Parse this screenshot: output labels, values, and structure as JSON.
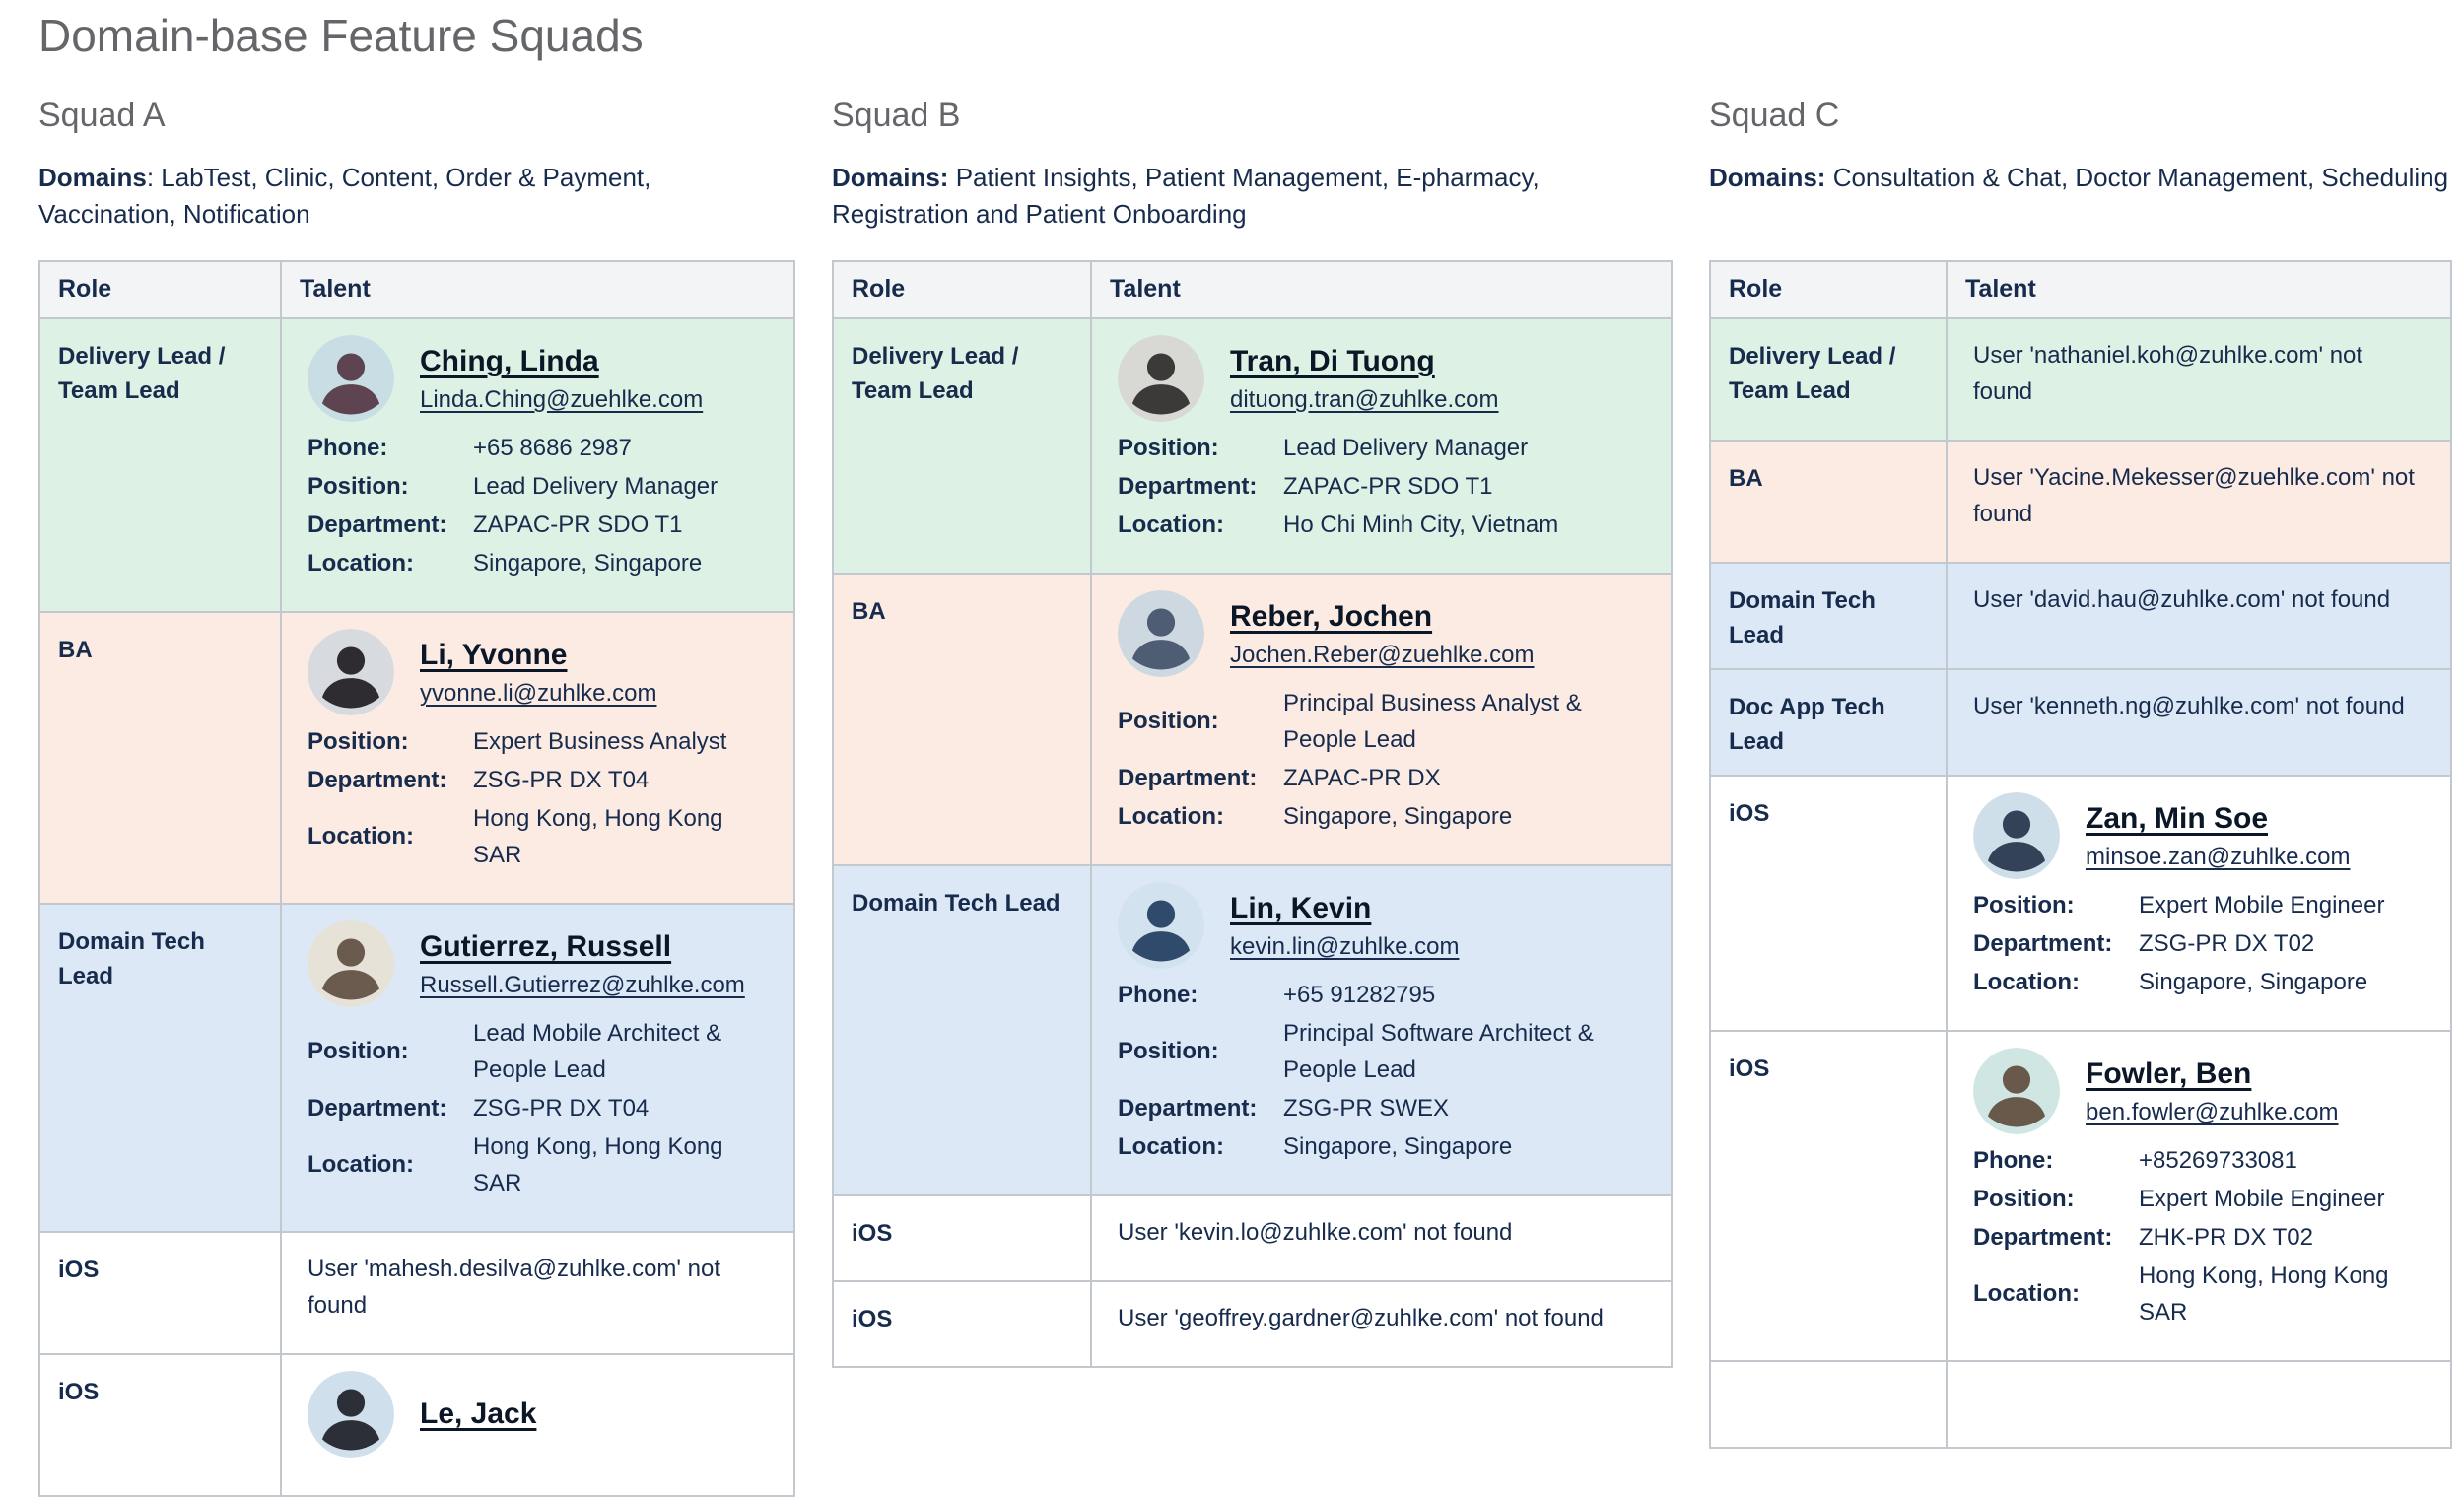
{
  "page": {
    "title": "Domain-base Feature Squads"
  },
  "labels": {
    "role_header": "Role",
    "talent_header": "Talent"
  },
  "theme": {
    "text": "#172b4d",
    "heading_gray": "#646669",
    "link_dark": "#0b1627",
    "row_green": "#def1e5",
    "row_pink": "#fcebe3",
    "row_blue": "#dde8f7",
    "header_bg": "#f3f4f6",
    "border": "#c3c8cf"
  },
  "squads": [
    {
      "name": "Squad A",
      "domains_bold": "Domains",
      "domains_rest": ": LabTest, Clinic, Content, Order & Payment, Vaccination, Notification",
      "rows": [
        {
          "type": "person",
          "color": "green",
          "role": "Delivery Lead / Team Lead",
          "person": {
            "name": "Ching, Linda",
            "email": "Linda.Ching@zuehlke.com",
            "avatar": {
              "bg": "#c9dde4",
              "fg": "#5d4450"
            },
            "fields": [
              {
                "label": "Phone:",
                "value": "+65 8686 2987"
              },
              {
                "label": "Position:",
                "value": "Lead Delivery Manager"
              },
              {
                "label": "Department:",
                "value": "ZAPAC-PR SDO T1"
              },
              {
                "label": "Location:",
                "value": "Singapore, Singapore"
              }
            ]
          }
        },
        {
          "type": "person",
          "color": "pink",
          "role": "BA",
          "person": {
            "name": "Li, Yvonne",
            "email": "yvonne.li@zuhlke.com",
            "avatar": {
              "bg": "#d7dbdf",
              "fg": "#2e2b31"
            },
            "fields": [
              {
                "label": "Position:",
                "value": "Expert Business Analyst"
              },
              {
                "label": "Department:",
                "value": "ZSG-PR DX T04"
              },
              {
                "label": "Location:",
                "value": "Hong Kong, Hong Kong SAR"
              }
            ]
          }
        },
        {
          "type": "person",
          "color": "blue",
          "role": "Domain Tech Lead",
          "person": {
            "name": "Gutierrez, Russell",
            "email": "Russell.Gutierrez@zuhlke.com",
            "avatar": {
              "bg": "#e7e2d8",
              "fg": "#6b5b4e"
            },
            "fields": [
              {
                "label": "Position:",
                "value": "Lead Mobile Architect & People Lead"
              },
              {
                "label": "Department:",
                "value": "ZSG-PR DX T04"
              },
              {
                "label": "Location:",
                "value": "Hong Kong, Hong Kong SAR"
              }
            ]
          }
        },
        {
          "type": "text",
          "color": "white",
          "role": "iOS",
          "text": "User 'mahesh.desilva@zuhlke.com' not found"
        },
        {
          "type": "person",
          "color": "white",
          "role": "iOS",
          "person": {
            "name": "Le, Jack",
            "email": null,
            "avatar": {
              "bg": "#cfe0ec",
              "fg": "#2c2f38"
            },
            "fields": []
          }
        }
      ]
    },
    {
      "name": "Squad B",
      "domains_bold": "Domains:",
      "domains_rest": " Patient Insights, Patient Management, E-pharmacy, Registration and Patient Onboarding",
      "rows": [
        {
          "type": "person",
          "color": "green",
          "role": "Delivery Lead / Team Lead",
          "person": {
            "name": "Tran, Di Tuong",
            "email": "dituong.tran@zuhlke.com",
            "avatar": {
              "bg": "#d8d8d4",
              "fg": "#3c3a39"
            },
            "fields": [
              {
                "label": "Position:",
                "value": "Lead Delivery Manager"
              },
              {
                "label": "Department:",
                "value": "ZAPAC-PR SDO T1"
              },
              {
                "label": "Location:",
                "value": "Ho Chi Minh City, Vietnam"
              }
            ]
          }
        },
        {
          "type": "person",
          "color": "pink",
          "role": "BA",
          "person": {
            "name": "Reber, Jochen",
            "email": "Jochen.Reber@zuehlke.com",
            "avatar": {
              "bg": "#cdd8e0",
              "fg": "#4e5c74"
            },
            "fields": [
              {
                "label": "Position:",
                "value": "Principal Business Analyst & People Lead"
              },
              {
                "label": "Department:",
                "value": "ZAPAC-PR DX"
              },
              {
                "label": "Location:",
                "value": "Singapore, Singapore"
              }
            ]
          }
        },
        {
          "type": "person",
          "color": "blue",
          "role": "Domain Tech Lead",
          "person": {
            "name": "Lin, Kevin",
            "email": "kevin.lin@zuhlke.com",
            "avatar": {
              "bg": "#d3e2ef",
              "fg": "#2f4a6b"
            },
            "fields": [
              {
                "label": "Phone:",
                "value": "+65 91282795"
              },
              {
                "label": "Position:",
                "value": "Principal Software Architect & People Lead"
              },
              {
                "label": "Department:",
                "value": "ZSG-PR SWEX"
              },
              {
                "label": "Location:",
                "value": "Singapore, Singapore"
              }
            ]
          }
        },
        {
          "type": "text",
          "color": "white",
          "role": "iOS",
          "text": "User 'kevin.lo@zuhlke.com' not found"
        },
        {
          "type": "text",
          "color": "white",
          "role": "iOS",
          "text": "User 'geoffrey.gardner@zuhlke.com' not found"
        }
      ]
    },
    {
      "name": "Squad C",
      "domains_bold": "Domains:",
      "domains_rest": " Consultation & Chat, Doctor Management, Scheduling",
      "rows": [
        {
          "type": "text",
          "color": "green",
          "role": "Delivery Lead / Team Lead",
          "text": "User 'nathaniel.koh@zuhlke.com' not found"
        },
        {
          "type": "text",
          "color": "pink",
          "role": "BA",
          "text": "User 'Yacine.Mekesser@zuehlke.com' not found"
        },
        {
          "type": "text",
          "color": "blue",
          "role": "Domain Tech Lead",
          "text": "User 'david.hau@zuhlke.com' not found"
        },
        {
          "type": "text",
          "color": "blue",
          "role": "Doc App Tech Lead",
          "text": "User 'kenneth.ng@zuhlke.com' not found"
        },
        {
          "type": "person",
          "color": "white",
          "role": "iOS",
          "person": {
            "name": "Zan, Min Soe",
            "email": "minsoe.zan@zuhlke.com",
            "avatar": {
              "bg": "#cfdfe9",
              "fg": "#334257"
            },
            "fields": [
              {
                "label": "Position:",
                "value": "Expert Mobile Engineer"
              },
              {
                "label": "Department:",
                "value": "ZSG-PR DX T02"
              },
              {
                "label": "Location:",
                "value": "Singapore, Singapore"
              }
            ]
          }
        },
        {
          "type": "person",
          "color": "white",
          "role": "iOS",
          "person": {
            "name": "Fowler, Ben",
            "email": "ben.fowler@zuhlke.com",
            "avatar": {
              "bg": "#cfe6e2",
              "fg": "#69594a"
            },
            "fields": [
              {
                "label": "Phone:",
                "value": "+85269733081"
              },
              {
                "label": "Position:",
                "value": "Expert Mobile Engineer"
              },
              {
                "label": "Department:",
                "value": "ZHK-PR DX T02"
              },
              {
                "label": "Location:",
                "value": "Hong Kong, Hong Kong SAR"
              }
            ]
          }
        },
        {
          "type": "empty",
          "color": "white",
          "role": ""
        }
      ]
    }
  ]
}
